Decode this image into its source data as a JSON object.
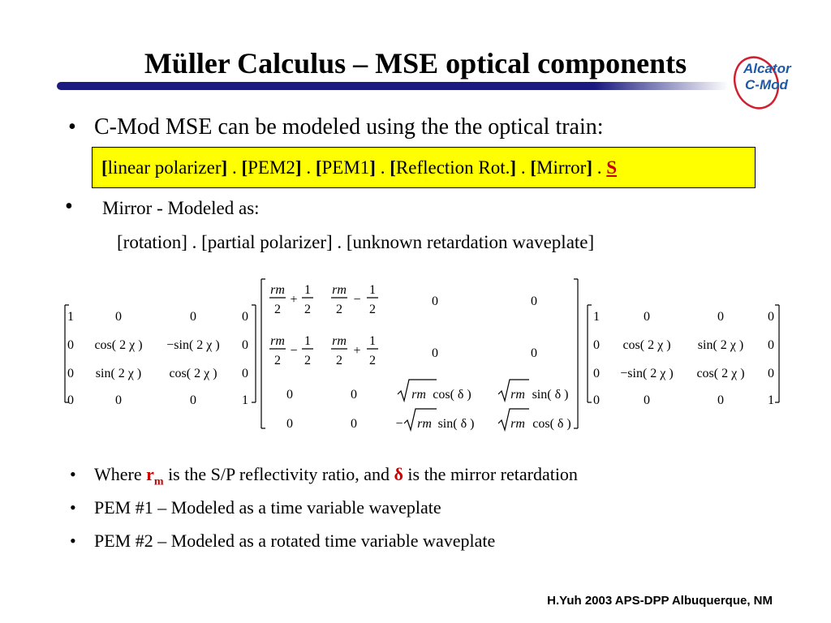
{
  "title": "Müller Calculus – MSE optical components",
  "logo": {
    "line1": "Alcator",
    "line2": "C-Mod"
  },
  "bullets": {
    "b1": "C-Mod MSE can be modeled using the the optical train:",
    "b2": "Mirror - Modeled as:",
    "b2_sub": "[rotation] . [partial polarizer] . [unknown retardation waveplate]",
    "b3_pre": "Where ",
    "b3_r": "r",
    "b3_m": "m",
    "b3_mid": " is the S/P reflectivity ratio, and ",
    "b3_delta": "δ",
    "b3_post": " is the mirror retardation",
    "b4": "PEM #1 – Modeled as a time variable waveplate",
    "b5": "PEM #2 – Modeled as a rotated time variable waveplate"
  },
  "train": {
    "l1": "[",
    "p1": "linear polarizer",
    "r1": "]",
    "sep1": " . ",
    "l2": "[",
    "p2": "PEM2",
    "r2": "]",
    "sep2": " . ",
    "l3": "[",
    "p3": "PEM1",
    "r3": "]",
    "sep3": " . ",
    "l4": "[",
    "p4": "Reflection Rot.",
    "r4": "]",
    "sep4": " . ",
    "l5": "[",
    "p5": "Mirror",
    "r5": "]",
    "sep5": " . ",
    "s": "S"
  },
  "matrix_left": {
    "r1": [
      "1",
      "0",
      "0",
      "0"
    ],
    "r2": [
      "0",
      "cos( 2 χ )",
      "−sin( 2 χ )",
      "0"
    ],
    "r3": [
      "0",
      "sin( 2 χ )",
      "cos( 2 χ )",
      "0"
    ],
    "r4": [
      "0",
      "0",
      "0",
      "1"
    ]
  },
  "matrix_mid": {
    "rm": "rm",
    "two": "2",
    "one": "1",
    "plus": "+",
    "minus": "−",
    "zero": "0",
    "c34": "cos( δ )",
    "c44": "cos( δ )",
    "s34": "sin( δ )",
    "s43": "sin( δ )",
    "neg": "−"
  },
  "matrix_right": {
    "r1": [
      "1",
      "0",
      "0",
      "0"
    ],
    "r2": [
      "0",
      "cos( 2 χ )",
      "sin( 2 χ )",
      "0"
    ],
    "r3": [
      "0",
      "−sin( 2 χ )",
      "cos( 2 χ )",
      "0"
    ],
    "r4": [
      "0",
      "0",
      "0",
      "1"
    ]
  },
  "footer": "H.Yuh   2003 APS-DPP Albuquerque, NM",
  "colors": {
    "rule_dark": "#1a1a80",
    "rule_light": "#ffffff",
    "highlight": "#ffff00",
    "accent_red": "#cc0000",
    "logo_red": "#d02030",
    "logo_blue": "#1e5aa8"
  }
}
